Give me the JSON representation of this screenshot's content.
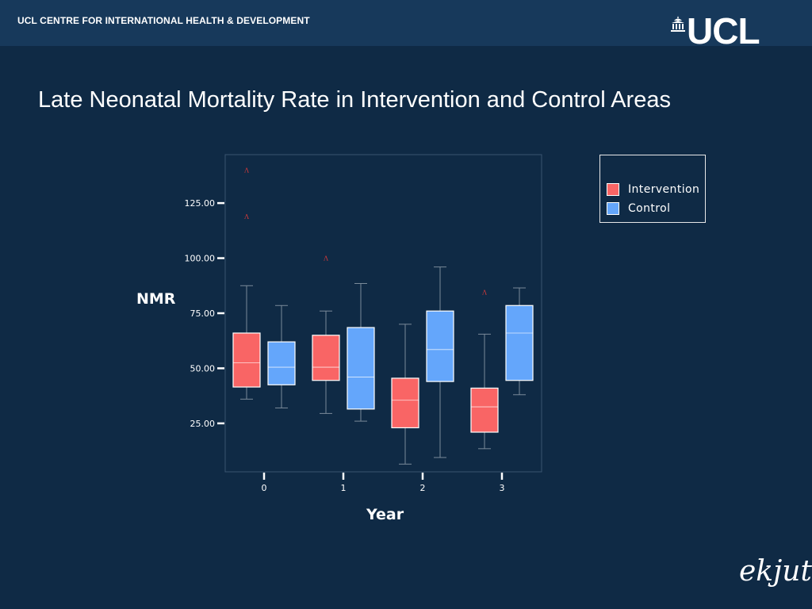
{
  "header": {
    "org_name": "UCL CENTRE FOR INTERNATIONAL HEALTH & DEVELOPMENT",
    "logo_text": "UCL"
  },
  "slide": {
    "title": "Late Neonatal Mortality Rate in Intervention and Control Areas"
  },
  "footer": {
    "brand": "ekjut"
  },
  "colors": {
    "background": "#0f2a45",
    "header": "#17395b",
    "intervention": "#f96565",
    "control": "#64a6fb"
  },
  "chart_data": {
    "type": "boxplot",
    "xlabel": "Year",
    "ylabel": "NMR",
    "categories": [
      "0",
      "1",
      "2",
      "3"
    ],
    "ylim": [
      3,
      147
    ],
    "yticks": [
      25,
      50,
      75,
      100,
      125
    ],
    "ytick_labels": [
      "25.00",
      "50.00",
      "75.00",
      "100.00",
      "125.00"
    ],
    "legend_position": "right",
    "series": [
      {
        "name": "Intervention",
        "boxes": [
          {
            "category": "0",
            "min": 36,
            "q1": 41.5,
            "median": 52.5,
            "q3": 66,
            "max": 87.5,
            "outliers": [
              119,
              140
            ]
          },
          {
            "category": "1",
            "min": 29.5,
            "q1": 44.5,
            "median": 50.5,
            "q3": 65,
            "max": 76,
            "outliers": [
              100
            ]
          },
          {
            "category": "2",
            "min": 6.5,
            "q1": 23,
            "median": 35.5,
            "q3": 45.5,
            "max": 70,
            "outliers": []
          },
          {
            "category": "3",
            "min": 13.5,
            "q1": 21,
            "median": 32.5,
            "q3": 41,
            "max": 65.5,
            "outliers": [
              84.5
            ]
          }
        ]
      },
      {
        "name": "Control",
        "boxes": [
          {
            "category": "0",
            "min": 32,
            "q1": 42.5,
            "median": 50.5,
            "q3": 62,
            "max": 78.5,
            "outliers": []
          },
          {
            "category": "1",
            "min": 26,
            "q1": 31.5,
            "median": 46,
            "q3": 68.5,
            "max": 88.5,
            "outliers": []
          },
          {
            "category": "2",
            "min": 9.5,
            "q1": 44,
            "median": 58.5,
            "q3": 76,
            "max": 96,
            "outliers": []
          },
          {
            "category": "3",
            "min": 38,
            "q1": 44.5,
            "median": 66,
            "q3": 78.5,
            "max": 86.5,
            "outliers": []
          }
        ]
      }
    ]
  }
}
